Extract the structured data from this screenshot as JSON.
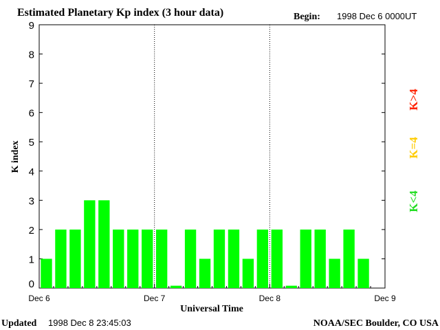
{
  "chart_data": {
    "type": "bar",
    "title": "Estimated Planetary Kp index (3 hour data)",
    "begin_label": "Begin:",
    "begin_value": "1998 Dec 6 0000UT",
    "xlabel": "Universal Time",
    "ylabel": "K index",
    "ylim": [
      0,
      9
    ],
    "yticks": [
      "0",
      "1",
      "2",
      "3",
      "4",
      "5",
      "6",
      "7",
      "8",
      "9"
    ],
    "xticks": [
      "Dec 6",
      "Dec 7",
      "Dec 8",
      "Dec 9"
    ],
    "day_dividers": [
      "Dec 7",
      "Dec 8"
    ],
    "bars_per_day": 8,
    "values": [
      1,
      2,
      2,
      3,
      3,
      2,
      2,
      2,
      2,
      0,
      2,
      1,
      2,
      2,
      1,
      2,
      2,
      0,
      2,
      2,
      1,
      2,
      1
    ],
    "bar_color": "#00ff00",
    "legend": [
      {
        "label": "K<4",
        "color": "#22dd22"
      },
      {
        "label": "K=4",
        "color": "#ffcc00"
      },
      {
        "label": "K>4",
        "color": "#ff2200"
      }
    ],
    "grid": false
  },
  "footer": {
    "updated_label": "Updated",
    "updated_value": "1998 Dec  8 23:45:03",
    "source": "NOAA/SEC Boulder, CO USA"
  }
}
